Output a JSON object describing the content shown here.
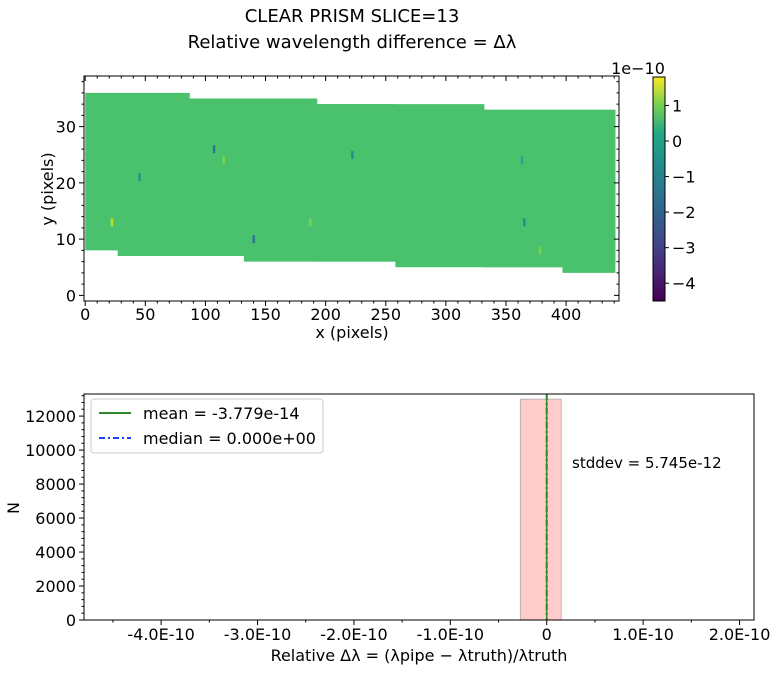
{
  "chart_data": [
    {
      "type": "heatmap",
      "title_line1": "CLEAR   PRISM   SLICE=13",
      "title_line2": "Relative wavelength difference = Δλ",
      "xlabel": "x (pixels)",
      "ylabel": "y (pixels)",
      "xlim": [
        -1,
        444
      ],
      "ylim": [
        -1,
        39
      ],
      "xticks": [
        0,
        50,
        100,
        150,
        200,
        250,
        300,
        350,
        400
      ],
      "yticks": [
        0,
        10,
        20,
        30
      ],
      "colormap": "viridis",
      "fill_color": "#4ac16d",
      "colorbar": {
        "scale_label": "1e−10",
        "range": [
          -4.5,
          1.8
        ],
        "ticks": [
          1,
          0,
          -1,
          -2,
          -3,
          -4
        ],
        "tick_labels": [
          "1",
          "0",
          "−1",
          "−2",
          "−3",
          "−4"
        ]
      },
      "segments": [
        {
          "x": [
            0,
            87
          ],
          "y": [
            8,
            36
          ]
        },
        {
          "x": [
            27,
            132
          ],
          "y": [
            7,
            35
          ]
        },
        {
          "x": [
            87,
            193
          ],
          "y": [
            7,
            35
          ]
        },
        {
          "x": [
            132,
            258
          ],
          "y": [
            6,
            34
          ]
        },
        {
          "x": [
            193,
            332
          ],
          "y": [
            6,
            34
          ]
        },
        {
          "x": [
            258,
            397
          ],
          "y": [
            5,
            33
          ]
        },
        {
          "x": [
            332,
            441
          ],
          "y": [
            5,
            33
          ]
        },
        {
          "x": [
            397,
            441
          ],
          "y": [
            4,
            33
          ]
        }
      ],
      "outliers": [
        {
          "x": 107,
          "y": 26,
          "value": -1.7
        },
        {
          "x": 140,
          "y": 10,
          "value": -2.2
        },
        {
          "x": 45,
          "y": 21,
          "value": -1.5
        },
        {
          "x": 22,
          "y": 13,
          "value": 0.9
        },
        {
          "x": 187,
          "y": 13,
          "value": 0.8
        },
        {
          "x": 222,
          "y": 25,
          "value": -1.2
        },
        {
          "x": 363,
          "y": 24,
          "value": -1.0
        },
        {
          "x": 365,
          "y": 13,
          "value": -1.4
        },
        {
          "x": 378,
          "y": 8,
          "value": 0.6
        },
        {
          "x": 115,
          "y": 24,
          "value": 0.5
        }
      ]
    },
    {
      "type": "histogram",
      "xlabel": "Relative Δλ = (λpipe − λtruth)/λtruth",
      "ylabel": "N",
      "xlim": [
        -4.8e-10,
        2.15e-10
      ],
      "ylim": [
        0,
        13300
      ],
      "xticks": [
        -4e-10,
        -3e-10,
        -2e-10,
        -1e-10,
        0,
        1e-10,
        2e-10
      ],
      "xtick_labels": [
        "-4.0E-10",
        "-3.0E-10",
        "-2.0E-10",
        "-1.0E-10",
        "0",
        "1.0E-10",
        "2.0E-10"
      ],
      "yticks": [
        0,
        2000,
        4000,
        6000,
        8000,
        10000,
        12000
      ],
      "bins": [
        {
          "x0": -2.75e-11,
          "x1": 1.5e-11,
          "count": 13000
        }
      ],
      "bar_color": "#ffcccc",
      "mean": -3.779e-14,
      "median": 0.0,
      "mean_label": "mean = -3.779e-14",
      "median_label": "median = 0.000e+00",
      "stddev_label": "stddev = 5.745e-12",
      "legend_position": "upper left",
      "mean_color": "#2e8b2e",
      "median_color": "#1f3cff"
    }
  ]
}
